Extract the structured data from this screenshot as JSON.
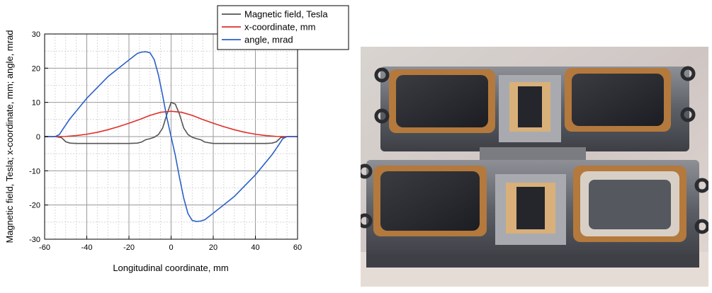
{
  "chart_data": {
    "type": "line",
    "xlabel": "Longitudinal coordinate, mm",
    "ylabel": "Magnetic field, Tesla; x-coordinate, mm; angle, mrad",
    "xlim": [
      -60,
      60
    ],
    "ylim": [
      -30,
      30
    ],
    "x_ticks": [
      -60,
      -40,
      -20,
      0,
      20,
      40,
      60
    ],
    "y_ticks": [
      -30,
      -20,
      -10,
      0,
      10,
      20,
      30
    ],
    "grid": true,
    "legend_position": "top-right",
    "series": [
      {
        "name": "Magnetic field, Tesla",
        "color": "#555555",
        "x": [
          -60,
          -55,
          -52,
          -50,
          -48,
          -45,
          -40,
          -30,
          -20,
          -16,
          -14,
          -12,
          -10,
          -8,
          -6,
          -4,
          -2,
          0,
          2,
          4,
          6,
          8,
          10,
          12,
          14,
          16,
          20,
          30,
          40,
          45,
          48,
          50,
          52,
          55,
          60
        ],
        "y": [
          0,
          0,
          -0.3,
          -1.5,
          -1.9,
          -2,
          -2,
          -2,
          -2,
          -1.9,
          -1.6,
          -0.9,
          -0.6,
          -0.2,
          0.6,
          2.5,
          6.5,
          10,
          9.5,
          6.5,
          2.5,
          0.6,
          -0.2,
          -0.6,
          -0.9,
          -1.6,
          -2,
          -2,
          -2,
          -2,
          -1.9,
          -1.5,
          -0.3,
          0,
          0
        ]
      },
      {
        "name": "x-coordinate, mm",
        "color": "#e0302a",
        "x": [
          -60,
          -55,
          -50,
          -45,
          -40,
          -35,
          -30,
          -25,
          -20,
          -15,
          -10,
          -5,
          0,
          5,
          10,
          15,
          20,
          25,
          30,
          35,
          40,
          45,
          50,
          55,
          60
        ],
        "y": [
          0,
          0,
          0.05,
          0.3,
          0.7,
          1.25,
          2.0,
          2.9,
          3.9,
          5.0,
          6.2,
          7.1,
          7.4,
          7.1,
          6.2,
          5.0,
          3.9,
          2.9,
          2.0,
          1.25,
          0.7,
          0.3,
          0.05,
          0,
          0
        ]
      },
      {
        "name": "angle, mrad",
        "color": "#2a60c8",
        "x": [
          -60,
          -55,
          -53,
          -51,
          -48,
          -40,
          -30,
          -20,
          -16,
          -14,
          -12,
          -10,
          -8,
          -6,
          -4,
          -2,
          0,
          2,
          4,
          6,
          8,
          10,
          12,
          14,
          16,
          20,
          30,
          40,
          48,
          51,
          53,
          55,
          60
        ],
        "y": [
          0,
          0,
          0.6,
          2.5,
          5.2,
          11.2,
          17.5,
          22.4,
          24.3,
          24.7,
          24.8,
          24.5,
          22.5,
          18,
          12,
          5.5,
          0,
          -5.5,
          -12,
          -18,
          -22.5,
          -24.5,
          -24.8,
          -24.7,
          -24.3,
          -22.4,
          -17.5,
          -11.2,
          -5.2,
          -2.5,
          -0.6,
          0,
          0
        ]
      }
    ]
  }
}
